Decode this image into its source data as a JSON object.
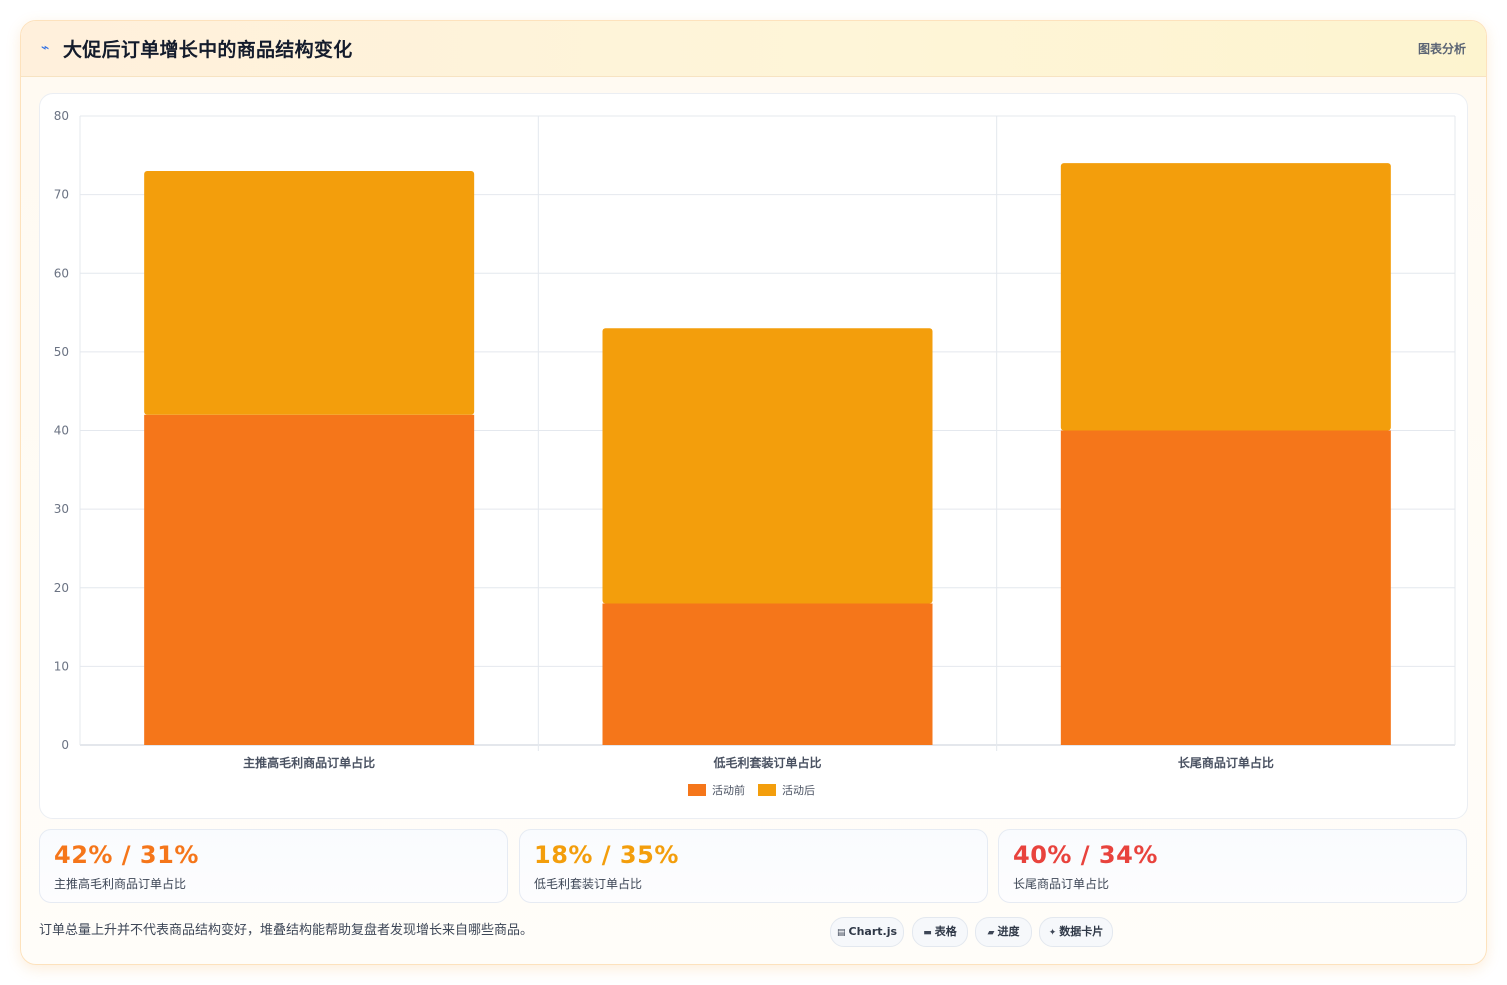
{
  "header": {
    "title": "大促后订单增长中的商品结构变化",
    "tag": "图表分析",
    "icon": "lightning-icon"
  },
  "colors": {
    "before": "#f5761a",
    "after": "#f39e0c",
    "accent_orange": "#f5761a",
    "accent_amber": "#f39e0c",
    "accent_red": "#e8433d"
  },
  "chart_data": {
    "type": "bar",
    "stacked": true,
    "categories": [
      "主推高毛利商品订单占比",
      "低毛利套装订单占比",
      "长尾商品订单占比"
    ],
    "series": [
      {
        "name": "活动前",
        "values": [
          42,
          18,
          40
        ],
        "color": "#f5761a"
      },
      {
        "name": "活动后",
        "values": [
          31,
          35,
          34
        ],
        "color": "#f39e0c"
      }
    ],
    "ylim": [
      0,
      80
    ],
    "yticks": [
      0,
      10,
      20,
      30,
      40,
      50,
      60,
      70,
      80
    ],
    "grid": true,
    "legend": "bottom-center",
    "title": "",
    "xlabel": "",
    "ylabel": ""
  },
  "stats": [
    {
      "value": "42% / 31%",
      "label": "主推高毛利商品订单占比",
      "color": "#f5761a"
    },
    {
      "value": "18% / 35%",
      "label": "低毛利套装订单占比",
      "color": "#f39e0c"
    },
    {
      "value": "40% / 34%",
      "label": "长尾商品订单占比",
      "color": "#e8433d"
    }
  ],
  "footer": {
    "note": "订单总量上升并不代表商品结构变好，堆叠结构能帮助复盘者发现增长来自哪些商品。",
    "pills": [
      {
        "label": "Chart.js",
        "icon": "chart-icon",
        "glyph": "▤"
      },
      {
        "label": "表格",
        "icon": "table-icon",
        "glyph": "▬"
      },
      {
        "label": "进度",
        "icon": "progress-icon",
        "glyph": "▰"
      },
      {
        "label": "数据卡片",
        "icon": "sparkle-icon",
        "glyph": "✦"
      }
    ]
  }
}
